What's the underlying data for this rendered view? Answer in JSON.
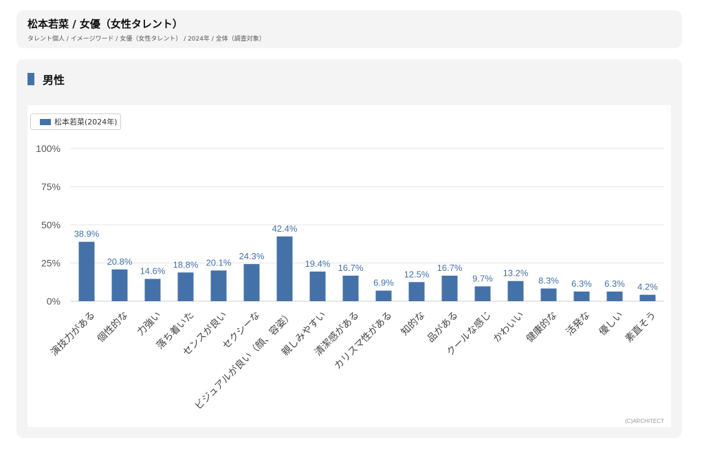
{
  "header": {
    "title": "松本若菜 / 女優（女性タレント）",
    "breadcrumb": "タレント個人 / イメージワード / 女優（女性タレント） / 2024年 / 全体（調査対象）"
  },
  "section": {
    "title": "男性"
  },
  "chart_data": {
    "type": "bar",
    "categories": [
      "演技力がある",
      "個性的な",
      "力強い",
      "落ち着いた",
      "センスが良い",
      "セクシーな",
      "ビジュアルが良い（顔、容姿）",
      "親しみやすい",
      "清潔感がある",
      "カリスマ性がある",
      "知的な",
      "品がある",
      "クールな感じ",
      "かわいい",
      "健康的な",
      "活発な",
      "優しい",
      "素直そう"
    ],
    "series": [
      {
        "name": "松本若菜(2024年)",
        "values": [
          38.9,
          20.8,
          14.6,
          18.8,
          20.1,
          24.3,
          42.4,
          19.4,
          16.7,
          6.9,
          12.5,
          16.7,
          9.7,
          13.2,
          8.3,
          6.3,
          6.3,
          4.2
        ],
        "labels": [
          "38.9%",
          "20.8%",
          "14.6%",
          "18.8%",
          "20.1%",
          "24.3%",
          "42.4%",
          "19.4%",
          "16.7%",
          "6.9%",
          "12.5%",
          "16.7%",
          "9.7%",
          "13.2%",
          "8.3%",
          "6.3%",
          "6.3%",
          "4.2%"
        ],
        "color": "#4472a8"
      }
    ],
    "yticks": [
      "0%",
      "25%",
      "50%",
      "75%",
      "100%"
    ],
    "ylim": [
      0,
      100
    ],
    "grid": true,
    "legend_position": "top-left"
  },
  "footer": {
    "copyright": "(C)ARCHITECT"
  },
  "colors": {
    "accent": "#4472a8",
    "label_text": "#4472a8",
    "grid": "#e6e6e6"
  }
}
